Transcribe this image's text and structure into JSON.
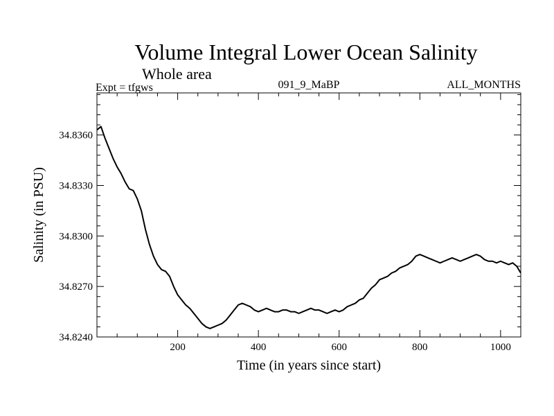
{
  "chart_data": {
    "type": "line",
    "title": "Volume Integral Lower Ocean Salinity",
    "subtitle": "Whole area",
    "header_left": "Expt = tfgws",
    "header_center": "091_9_MaBP",
    "header_right": "ALL_MONTHS",
    "xlabel": "Time (in years since start)",
    "ylabel": "Salinity (in PSU)",
    "xlim": [
      0,
      1050
    ],
    "ylim": [
      34.824,
      34.8385
    ],
    "xticks": [
      200,
      400,
      600,
      800,
      1000
    ],
    "yticks": [
      34.824,
      34.827,
      34.83,
      34.833,
      34.836
    ],
    "ytick_labels": [
      "34.8240",
      "34.8270",
      "34.8300",
      "34.8330",
      "34.8360"
    ],
    "grid": false,
    "line_color": "#000000",
    "series": [
      {
        "name": "Salinity",
        "x": [
          0,
          10,
          20,
          30,
          40,
          50,
          60,
          70,
          80,
          90,
          100,
          110,
          120,
          130,
          140,
          150,
          160,
          170,
          180,
          190,
          200,
          210,
          220,
          230,
          240,
          250,
          260,
          270,
          280,
          290,
          300,
          310,
          320,
          330,
          340,
          350,
          360,
          370,
          380,
          390,
          400,
          410,
          420,
          430,
          440,
          450,
          460,
          470,
          480,
          490,
          500,
          510,
          520,
          530,
          540,
          550,
          560,
          570,
          580,
          590,
          600,
          610,
          620,
          630,
          640,
          650,
          660,
          670,
          680,
          690,
          700,
          710,
          720,
          730,
          740,
          750,
          760,
          770,
          780,
          790,
          800,
          810,
          820,
          830,
          840,
          850,
          860,
          870,
          880,
          890,
          900,
          910,
          920,
          930,
          940,
          950,
          960,
          970,
          980,
          990,
          1000,
          1010,
          1020,
          1030,
          1040,
          1050
        ],
        "values": [
          34.8363,
          34.8365,
          34.8358,
          34.8352,
          34.8346,
          34.8341,
          34.8337,
          34.8332,
          34.8328,
          34.8327,
          34.8322,
          34.8315,
          34.8304,
          34.8295,
          34.8288,
          34.8283,
          34.828,
          34.8279,
          34.8276,
          34.827,
          34.8265,
          34.8262,
          34.8259,
          34.8257,
          34.8254,
          34.8251,
          34.8248,
          34.8246,
          34.8245,
          34.8246,
          34.8247,
          34.8248,
          34.825,
          34.8253,
          34.8256,
          34.8259,
          34.826,
          34.8259,
          34.8258,
          34.8256,
          34.8255,
          34.8256,
          34.8257,
          34.8256,
          34.8255,
          34.8255,
          34.8256,
          34.8256,
          34.8255,
          34.8255,
          34.8254,
          34.8255,
          34.8256,
          34.8257,
          34.8256,
          34.8256,
          34.8255,
          34.8254,
          34.8255,
          34.8256,
          34.8255,
          34.8256,
          34.8258,
          34.8259,
          34.826,
          34.8262,
          34.8263,
          34.8266,
          34.8269,
          34.8271,
          34.8274,
          34.8275,
          34.8276,
          34.8278,
          34.8279,
          34.8281,
          34.8282,
          34.8283,
          34.8285,
          34.8288,
          34.8289,
          34.8288,
          34.8287,
          34.8286,
          34.8285,
          34.8284,
          34.8285,
          34.8286,
          34.8287,
          34.8286,
          34.8285,
          34.8286,
          34.8287,
          34.8288,
          34.8289,
          34.8288,
          34.8286,
          34.8285,
          34.8285,
          34.8284,
          34.8285,
          34.8284,
          34.8283,
          34.8284,
          34.8282,
          34.8278
        ]
      }
    ]
  }
}
